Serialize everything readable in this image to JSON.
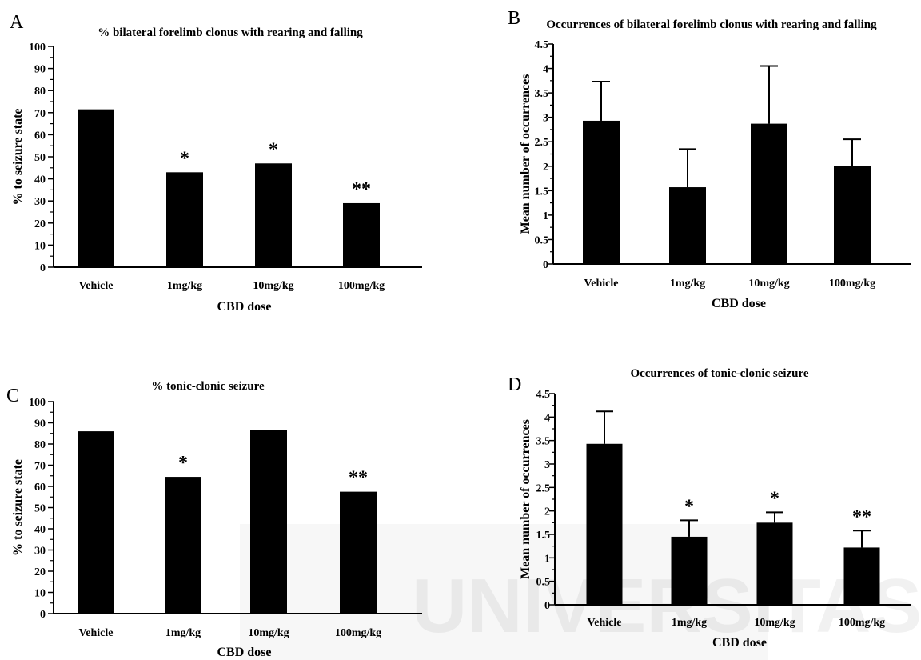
{
  "figure": {
    "watermark_word": "UNIVERSITAS"
  },
  "chart_data": [
    {
      "panel": "A",
      "type": "bar",
      "title": "% bilateral forelimb clonus with rearing and falling",
      "xlabel": "CBD dose",
      "ylabel": "% to seizure state",
      "categories": [
        "Vehicle",
        "1mg/kg",
        "10mg/kg",
        "100mg/kg"
      ],
      "values": [
        71.5,
        43,
        47,
        29
      ],
      "significance": [
        "",
        "*",
        "*",
        "**"
      ],
      "ylim": [
        0,
        100
      ],
      "yticks": [
        "0",
        "10",
        "20",
        "30",
        "40",
        "50",
        "60",
        "70",
        "80",
        "90",
        "100"
      ],
      "grid": false,
      "bar_color": "#000000"
    },
    {
      "panel": "B",
      "type": "bar",
      "title": "Occurrences of bilateral forelimb clonus with rearing and falling",
      "xlabel": "CBD dose",
      "ylabel": "Mean number of occurrences",
      "categories": [
        "Vehicle",
        "1mg/kg",
        "10mg/kg",
        "100mg/kg"
      ],
      "values": [
        2.93,
        1.57,
        2.87,
        2.0
      ],
      "error_upper": [
        3.73,
        2.35,
        4.05,
        2.55
      ],
      "significance": [
        "",
        "",
        "",
        ""
      ],
      "ylim": [
        0,
        4.5
      ],
      "yticks": [
        "0",
        "0.5",
        "1",
        "1.5",
        "2",
        "2.5",
        "3",
        "3.5",
        "4",
        "4.5"
      ],
      "grid": false,
      "bar_color": "#000000"
    },
    {
      "panel": "C",
      "type": "bar",
      "title": "% tonic-clonic seizure",
      "xlabel": "CBD dose",
      "ylabel": "% to seizure state",
      "categories": [
        "Vehicle",
        "1mg/kg",
        "10mg/kg",
        "100mg/kg"
      ],
      "values": [
        86,
        64.5,
        86.5,
        57.5
      ],
      "significance": [
        "",
        "*",
        "",
        "**"
      ],
      "ylim": [
        0,
        100
      ],
      "yticks": [
        "0",
        "10",
        "20",
        "30",
        "40",
        "50",
        "60",
        "70",
        "80",
        "90",
        "100"
      ],
      "grid": false,
      "bar_color": "#000000"
    },
    {
      "panel": "D",
      "type": "bar",
      "title": "Occurrences of tonic-clonic seizure",
      "xlabel": "CBD dose",
      "ylabel": "Mean number of occurrences",
      "categories": [
        "Vehicle",
        "1mg/kg",
        "10mg/kg",
        "100mg/kg"
      ],
      "values": [
        3.43,
        1.45,
        1.75,
        1.22
      ],
      "error_upper": [
        4.12,
        1.8,
        1.97,
        1.58
      ],
      "significance": [
        "",
        "*",
        "*",
        "**"
      ],
      "ylim": [
        0,
        4.5
      ],
      "yticks": [
        "0",
        "0.5",
        "1",
        "1.5",
        "2",
        "2.5",
        "3",
        "3.5",
        "4",
        "4.5"
      ],
      "grid": false,
      "bar_color": "#000000"
    }
  ]
}
